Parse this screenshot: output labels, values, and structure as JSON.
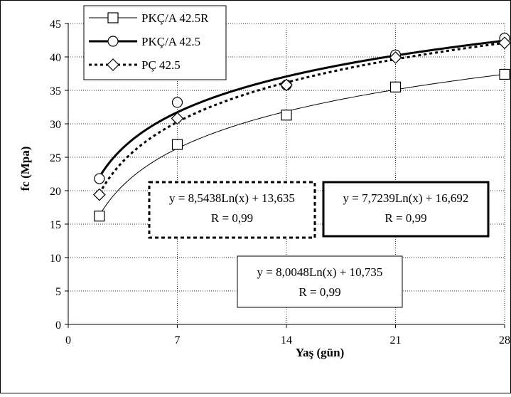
{
  "chart_data": {
    "type": "scatter",
    "xlabel": "Yaş (gün)",
    "ylabel": "fc (Mpa)",
    "xlim": [
      0,
      28
    ],
    "ylim": [
      0,
      45
    ],
    "x_ticks": [
      0,
      7,
      14,
      21,
      28
    ],
    "y_ticks": [
      0,
      5,
      10,
      15,
      20,
      25,
      30,
      35,
      40,
      45
    ],
    "grid": "dotted",
    "legend_position": "top-left",
    "series": [
      {
        "name": "PKÇ/A 42.5R",
        "marker": "square",
        "line": "thin-solid",
        "x": [
          2,
          7,
          14,
          21,
          28
        ],
        "y": [
          16.2,
          26.9,
          31.3,
          35.5,
          37.4
        ],
        "fit": {
          "a": 8.0048,
          "b": 10.735,
          "range": [
            2,
            28
          ]
        }
      },
      {
        "name": "PKÇ/A 42.5",
        "marker": "circle",
        "line": "thick-solid",
        "x": [
          2,
          7,
          14,
          21,
          28
        ],
        "y": [
          21.8,
          33.2,
          35.8,
          40.3,
          42.8
        ],
        "fit": {
          "a": 7.7239,
          "b": 16.692,
          "range": [
            2,
            28
          ]
        }
      },
      {
        "name": "PÇ 42.5",
        "marker": "diamond",
        "line": "dotted",
        "x": [
          2,
          7,
          14,
          21,
          28
        ],
        "y": [
          19.4,
          30.8,
          35.8,
          39.9,
          42.1
        ],
        "fit": {
          "a": 8.5438,
          "b": 13.635,
          "range": [
            2,
            28
          ]
        }
      }
    ],
    "annotations": [
      {
        "eq": "y = 8,5438Ln(x) + 13,635",
        "r": "R = 0,99",
        "border": "dashed"
      },
      {
        "eq": "y = 7,7239Ln(x) + 16,692",
        "r": "R = 0,99",
        "border": "thick"
      },
      {
        "eq": "y = 8,0048Ln(x) + 10,735",
        "r": "R = 0,99",
        "border": "thin"
      }
    ]
  }
}
